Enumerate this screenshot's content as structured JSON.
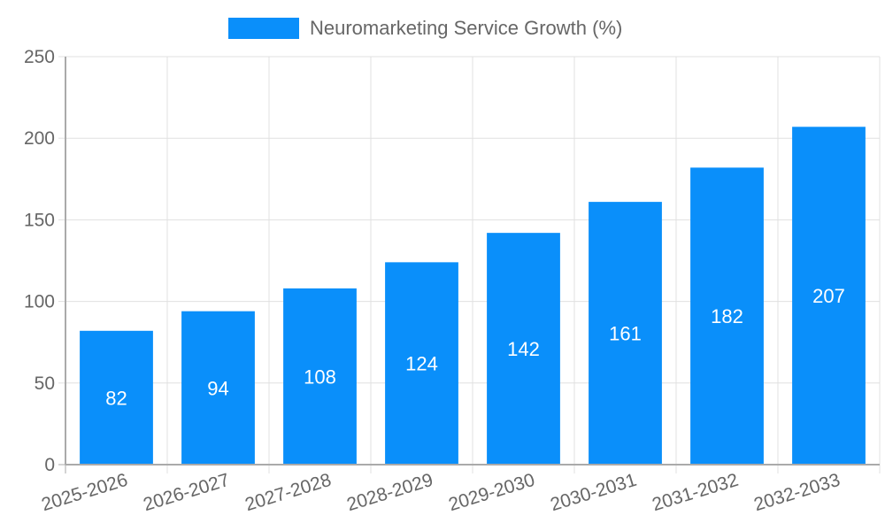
{
  "chart_data": {
    "type": "bar",
    "title": "",
    "legend": [
      "Neuromarketing Service Growth (%)"
    ],
    "legend_position": "top",
    "categories": [
      "2025-2026",
      "2026-2027",
      "2027-2028",
      "2028-2029",
      "2029-2030",
      "2030-2031",
      "2031-2032",
      "2032-2033"
    ],
    "series": [
      {
        "name": "Neuromarketing Service Growth (%)",
        "values": [
          82,
          94,
          108,
          124,
          142,
          161,
          182,
          207
        ],
        "color": "#0a8ffa"
      }
    ],
    "data_labels": [
      "82",
      "94",
      "108",
      "124",
      "142",
      "161",
      "182",
      "207"
    ],
    "xlabel": "",
    "ylabel": "",
    "ylim": [
      0,
      250
    ],
    "yticks": [
      "0",
      "50",
      "100",
      "150",
      "200",
      "250"
    ],
    "grid": true
  },
  "legend": {
    "label": "Neuromarketing Service Growth (%)",
    "color": "#0a8ffa"
  },
  "colors": {
    "bar": "#0a8ffa",
    "grid": "#e0e0e0",
    "axis": "#aaaaaa",
    "tick_text": "#666666",
    "data_label": "#ffffff"
  }
}
